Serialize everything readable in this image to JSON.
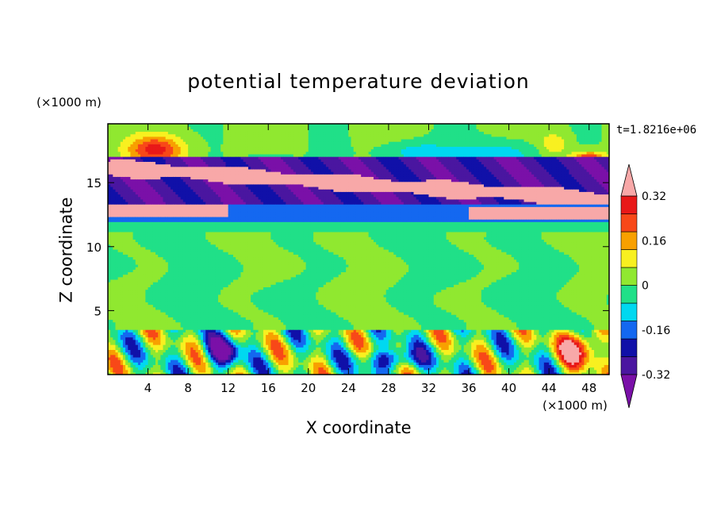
{
  "chart_data": {
    "type": "heatmap",
    "title": "potential temperature deviation",
    "xlabel": "X coordinate",
    "ylabel": "Z coordinate",
    "x_multiplier": "(×1000 m)",
    "y_multiplier": "(×1000 m)",
    "time_label": "t=1.8216e+06",
    "xlim": [
      0,
      50
    ],
    "ylim": [
      0,
      19.6
    ],
    "xticks": [
      4,
      8,
      12,
      16,
      20,
      24,
      28,
      32,
      36,
      40,
      44,
      48
    ],
    "yticks": [
      5,
      10,
      15
    ],
    "colorbar": {
      "orientation": "vertical",
      "extend": "both",
      "ticks": [
        "0.32",
        "0.16",
        "0",
        "-0.16",
        "-0.32"
      ],
      "tick_values": [
        0.32,
        0.16,
        0,
        -0.16,
        -0.32
      ],
      "levels": [
        -0.4,
        -0.32,
        -0.24,
        -0.16,
        -0.08,
        0,
        0.08,
        0.16,
        0.24,
        0.32,
        0.4
      ],
      "colors_low_to_high": [
        "#7a10a8",
        "#4a16a0",
        "#1010a8",
        "#1468f0",
        "#00d8f0",
        "#20e088",
        "#90e830",
        "#f8f020",
        "#f8a000",
        "#f84818",
        "#e81818",
        "#f8a8a8"
      ]
    },
    "field_description_bands": [
      {
        "z_range": [
          17,
          19.6
        ],
        "value": 0
      },
      {
        "z_range": [
          13,
          16
        ],
        "value": -0.36
      },
      {
        "z_range": [
          12,
          13.5
        ],
        "value": 0.42
      },
      {
        "z_range": [
          11.2,
          12
        ],
        "value": -0.08
      },
      {
        "z_range": [
          3.5,
          11.2
        ],
        "value": 0.04
      },
      {
        "z_range": [
          0,
          3.5
        ],
        "value": 0
      }
    ]
  }
}
